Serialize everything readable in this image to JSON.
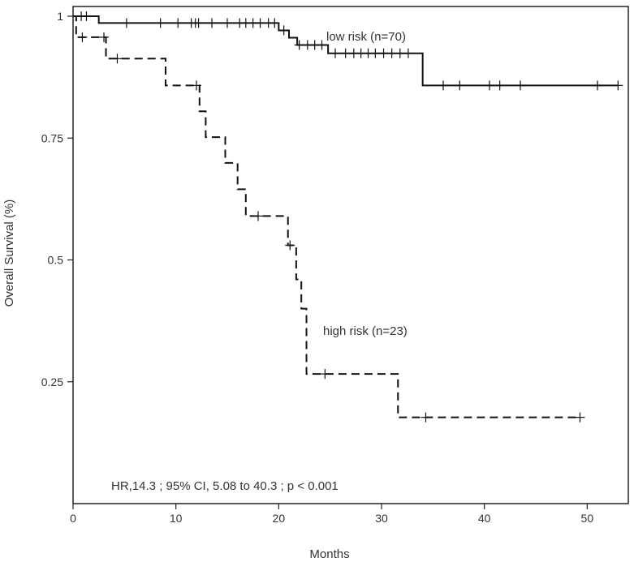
{
  "chart_data": {
    "type": "line",
    "xlabel": "Months",
    "ylabel": "Overall Survival (%)",
    "xlim": [
      0,
      54
    ],
    "ylim": [
      0,
      1.02
    ],
    "xticks": [
      0,
      10,
      20,
      30,
      40,
      50
    ],
    "yticks": [
      1,
      0.75,
      0.5,
      0.25
    ],
    "ytick_labels": [
      "1",
      "0.75",
      "0.5",
      "0.25"
    ],
    "grid": false,
    "series": [
      {
        "name": "low risk (n=70)",
        "style": "solid",
        "color": "#111111",
        "steps": [
          [
            0,
            1.0
          ],
          [
            2.5,
            0.986
          ],
          [
            20.0,
            0.971
          ],
          [
            21.0,
            0.956
          ],
          [
            21.8,
            0.941
          ],
          [
            24.8,
            0.924
          ],
          [
            34.0,
            0.858
          ],
          [
            53.0,
            0.858
          ]
        ],
        "censored": [
          [
            0.8,
            1.0
          ],
          [
            1.3,
            1.0
          ],
          [
            5.2,
            0.986
          ],
          [
            8.5,
            0.986
          ],
          [
            10.2,
            0.986
          ],
          [
            11.5,
            0.986
          ],
          [
            11.9,
            0.986
          ],
          [
            12.2,
            0.986
          ],
          [
            13.5,
            0.986
          ],
          [
            15.0,
            0.986
          ],
          [
            16.2,
            0.986
          ],
          [
            16.8,
            0.986
          ],
          [
            17.5,
            0.986
          ],
          [
            18.2,
            0.986
          ],
          [
            19.0,
            0.986
          ],
          [
            19.6,
            0.986
          ],
          [
            20.5,
            0.971
          ],
          [
            22.0,
            0.941
          ],
          [
            22.8,
            0.941
          ],
          [
            23.5,
            0.941
          ],
          [
            24.2,
            0.941
          ],
          [
            25.5,
            0.924
          ],
          [
            26.5,
            0.924
          ],
          [
            27.3,
            0.924
          ],
          [
            28.0,
            0.924
          ],
          [
            28.7,
            0.924
          ],
          [
            29.4,
            0.924
          ],
          [
            30.2,
            0.924
          ],
          [
            31.0,
            0.924
          ],
          [
            31.8,
            0.924
          ],
          [
            32.6,
            0.924
          ],
          [
            36.0,
            0.858
          ],
          [
            37.6,
            0.858
          ],
          [
            40.5,
            0.858
          ],
          [
            41.5,
            0.858
          ],
          [
            43.5,
            0.858
          ],
          [
            51.0,
            0.858
          ],
          [
            53.0,
            0.858
          ]
        ]
      },
      {
        "name": "high risk (n=23)",
        "style": "dashed",
        "color": "#111111",
        "steps": [
          [
            0,
            1.0
          ],
          [
            0.3,
            0.957
          ],
          [
            3.2,
            0.913
          ],
          [
            9.0,
            0.858
          ],
          [
            12.3,
            0.805
          ],
          [
            12.9,
            0.752
          ],
          [
            14.8,
            0.699
          ],
          [
            16.0,
            0.645
          ],
          [
            16.8,
            0.59
          ],
          [
            20.9,
            0.53
          ],
          [
            21.7,
            0.46
          ],
          [
            22.2,
            0.4
          ],
          [
            22.7,
            0.266
          ],
          [
            31.6,
            0.177
          ],
          [
            49.3,
            0.177
          ]
        ],
        "censored": [
          [
            0.9,
            0.957
          ],
          [
            3.0,
            0.957
          ],
          [
            4.3,
            0.913
          ],
          [
            12.0,
            0.858
          ],
          [
            18.0,
            0.59
          ],
          [
            21.1,
            0.53
          ],
          [
            24.5,
            0.266
          ],
          [
            34.3,
            0.177
          ],
          [
            49.3,
            0.177
          ]
        ]
      }
    ],
    "annotations": {
      "low_label": "low risk (n=70)",
      "high_label": "high risk (n=23)",
      "stats": "HR,14.3 ; 95% CI, 5.08  to  40.3  ; p < 0.001"
    }
  }
}
